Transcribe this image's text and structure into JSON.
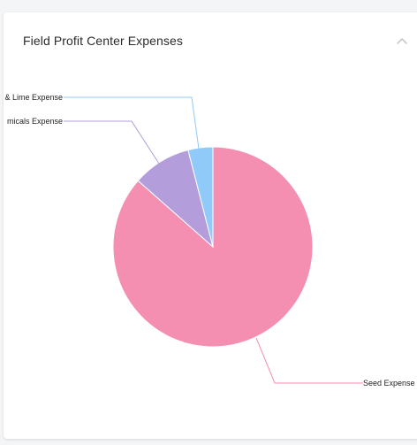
{
  "panel": {
    "title": "Field Profit Center Expenses"
  },
  "chart_data": {
    "type": "pie",
    "title": "Field Profit Center Expenses",
    "slices": [
      {
        "label": "Seed Expense",
        "value": 86.5,
        "color": "#f48fb1"
      },
      {
        "label": "Chemicals Expense",
        "value": 9.5,
        "color": "#b39ddb"
      },
      {
        "label": "Fertilizer & Lime Expense",
        "value": 4.0,
        "color": "#90caf9"
      }
    ],
    "labels_visible": {
      "Seed Expense": "Seed Expense",
      "Chemicals Expense": "micals Expense",
      "Fertilizer & Lime Expense": "& Lime Expense"
    }
  },
  "icons": {
    "collapse": "chevron-up-icon"
  }
}
